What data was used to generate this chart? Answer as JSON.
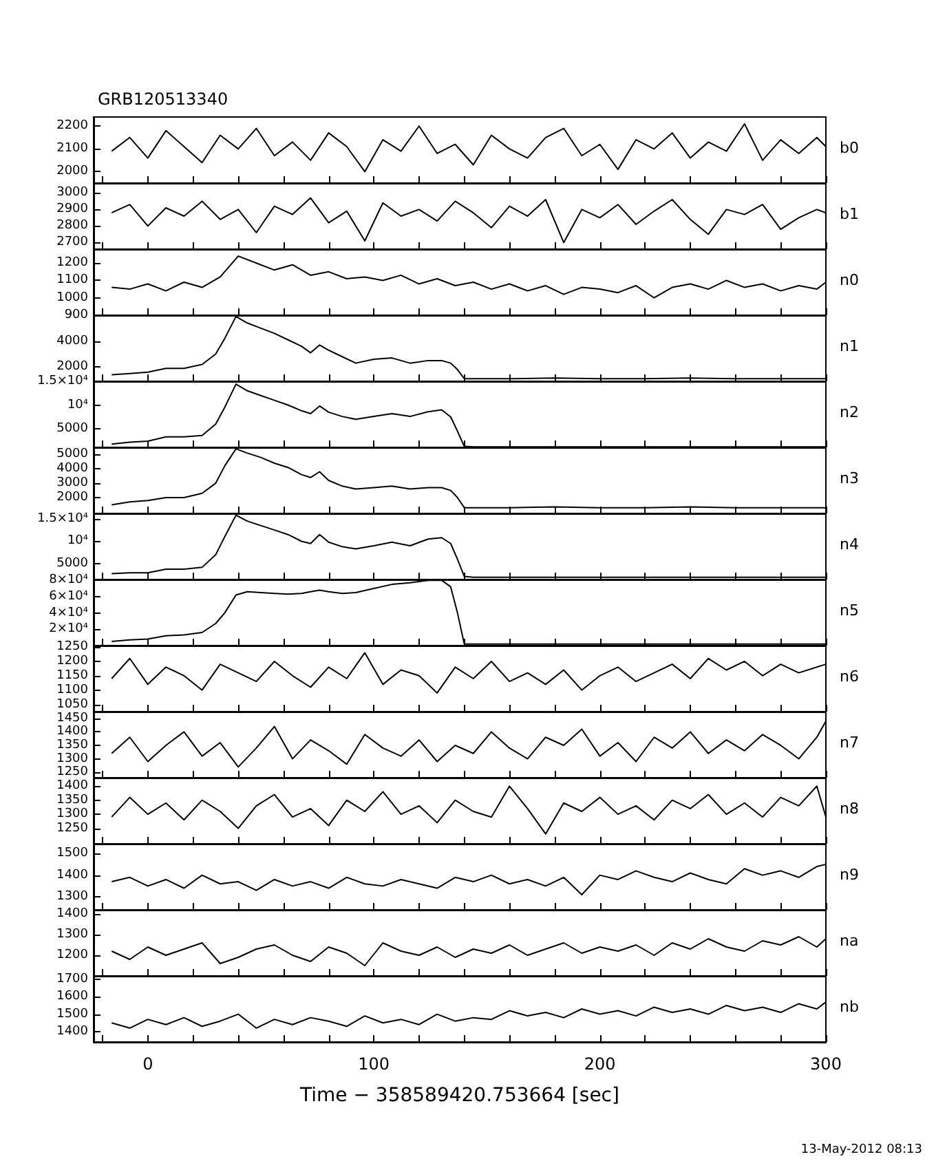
{
  "chart_data": [
    {
      "type": "line",
      "title": "GRB120513340",
      "tick_labels": "y",
      "marker": "none",
      "xlim": [
        -24,
        300
      ],
      "xticks": [
        {
          "value": -20,
          "label": null
        },
        0,
        {
          "value": 20,
          "label": null
        },
        {
          "value": 40,
          "label": null
        },
        {
          "value": 60,
          "label": null
        },
        {
          "value": 80,
          "label": null
        },
        100,
        {
          "value": 120,
          "label": null
        },
        {
          "value": 140,
          "label": null
        },
        {
          "value": 160,
          "label": null
        },
        {
          "value": 180,
          "label": null
        },
        200,
        {
          "value": 220,
          "label": null
        },
        {
          "value": 240,
          "label": null
        },
        {
          "value": 260,
          "label": null
        },
        {
          "value": 280,
          "label": null
        },
        300
      ],
      "ylim": [
        1950,
        2240
      ],
      "yticks": [
        2000,
        2100,
        2200
      ],
      "x": [
        -16,
        -8,
        0,
        8,
        16,
        24,
        32,
        40,
        48,
        56,
        64,
        72,
        80,
        88,
        96,
        104,
        112,
        120,
        128,
        136,
        144,
        152,
        160,
        168,
        176,
        184,
        192,
        200,
        208,
        216,
        224,
        232,
        240,
        248,
        256,
        264,
        272,
        280,
        288,
        296,
        300
      ],
      "series": [
        {
          "name": "b0",
          "color": "#000000",
          "values": [
            2090,
            2150,
            2060,
            2180,
            2110,
            2040,
            2160,
            2100,
            2190,
            2070,
            2130,
            2050,
            2170,
            2110,
            2000,
            2140,
            2090,
            2200,
            2080,
            2120,
            2030,
            2160,
            2100,
            2060,
            2150,
            2190,
            2070,
            2120,
            2010,
            2140,
            2100,
            2170,
            2060,
            2130,
            2090,
            2210,
            2050,
            2140,
            2080,
            2150,
            2110
          ]
        }
      ]
    },
    {
      "type": "line",
      "tick_labels": "y",
      "marker": "none",
      "xlim": [
        -24,
        300
      ],
      "xticks": [
        {
          "value": -20,
          "label": null
        },
        0,
        {
          "value": 20,
          "label": null
        },
        {
          "value": 40,
          "label": null
        },
        {
          "value": 60,
          "label": null
        },
        {
          "value": 80,
          "label": null
        },
        100,
        {
          "value": 120,
          "label": null
        },
        {
          "value": 140,
          "label": null
        },
        {
          "value": 160,
          "label": null
        },
        {
          "value": 180,
          "label": null
        },
        200,
        {
          "value": 220,
          "label": null
        },
        {
          "value": 240,
          "label": null
        },
        {
          "value": 260,
          "label": null
        },
        {
          "value": 280,
          "label": null
        },
        300
      ],
      "ylim": [
        2660,
        3060
      ],
      "yticks": [
        2700,
        2800,
        2900,
        3000
      ],
      "x": [
        -16,
        -8,
        0,
        8,
        16,
        24,
        32,
        40,
        48,
        56,
        64,
        72,
        80,
        88,
        96,
        104,
        112,
        120,
        128,
        136,
        144,
        152,
        160,
        168,
        176,
        184,
        192,
        200,
        208,
        216,
        224,
        232,
        240,
        248,
        256,
        264,
        272,
        280,
        288,
        296,
        300
      ],
      "series": [
        {
          "name": "b1",
          "color": "#000000",
          "values": [
            2880,
            2930,
            2800,
            2910,
            2860,
            2950,
            2840,
            2900,
            2760,
            2920,
            2870,
            2970,
            2820,
            2890,
            2710,
            2940,
            2860,
            2900,
            2830,
            2950,
            2880,
            2790,
            2920,
            2860,
            2960,
            2700,
            2900,
            2850,
            2930,
            2810,
            2890,
            2960,
            2840,
            2750,
            2900,
            2870,
            2930,
            2780,
            2850,
            2900,
            2880
          ]
        }
      ]
    },
    {
      "type": "line",
      "tick_labels": "y",
      "marker": "none",
      "xlim": [
        -24,
        300
      ],
      "xticks": [
        {
          "value": -20,
          "label": null
        },
        0,
        {
          "value": 20,
          "label": null
        },
        {
          "value": 40,
          "label": null
        },
        {
          "value": 60,
          "label": null
        },
        {
          "value": 80,
          "label": null
        },
        100,
        {
          "value": 120,
          "label": null
        },
        {
          "value": 140,
          "label": null
        },
        {
          "value": 160,
          "label": null
        },
        {
          "value": 180,
          "label": null
        },
        200,
        {
          "value": 220,
          "label": null
        },
        {
          "value": 240,
          "label": null
        },
        {
          "value": 260,
          "label": null
        },
        {
          "value": 280,
          "label": null
        },
        300
      ],
      "ylim": [
        900,
        1280
      ],
      "yticks": [
        900,
        1000,
        1100,
        1200
      ],
      "x": [
        -16,
        -8,
        0,
        8,
        16,
        24,
        32,
        40,
        48,
        56,
        64,
        72,
        80,
        88,
        96,
        104,
        112,
        120,
        128,
        136,
        144,
        152,
        160,
        168,
        176,
        184,
        192,
        200,
        208,
        216,
        224,
        232,
        240,
        248,
        256,
        264,
        272,
        280,
        288,
        296,
        300
      ],
      "series": [
        {
          "name": "n0",
          "color": "#000000",
          "values": [
            1060,
            1050,
            1080,
            1040,
            1090,
            1060,
            1120,
            1240,
            1200,
            1160,
            1190,
            1130,
            1150,
            1110,
            1120,
            1100,
            1130,
            1080,
            1110,
            1070,
            1090,
            1050,
            1080,
            1040,
            1070,
            1020,
            1060,
            1050,
            1030,
            1070,
            1000,
            1060,
            1080,
            1050,
            1100,
            1060,
            1080,
            1040,
            1070,
            1050,
            1090
          ]
        }
      ]
    },
    {
      "type": "line",
      "tick_labels": "y",
      "marker": "none",
      "xlim": [
        -24,
        300
      ],
      "xticks": [
        {
          "value": -20,
          "label": null
        },
        0,
        {
          "value": 20,
          "label": null
        },
        {
          "value": 40,
          "label": null
        },
        {
          "value": 60,
          "label": null
        },
        {
          "value": 80,
          "label": null
        },
        100,
        {
          "value": 120,
          "label": null
        },
        {
          "value": 140,
          "label": null
        },
        {
          "value": 160,
          "label": null
        },
        {
          "value": 180,
          "label": null
        },
        200,
        {
          "value": 220,
          "label": null
        },
        {
          "value": 240,
          "label": null
        },
        {
          "value": 260,
          "label": null
        },
        {
          "value": 280,
          "label": null
        },
        300
      ],
      "ylim": [
        900,
        6000
      ],
      "yticks": [
        2000,
        4000
      ],
      "x": [
        -16,
        -8,
        0,
        8,
        16,
        24,
        30,
        34,
        39,
        44,
        50,
        56,
        62,
        68,
        72,
        76,
        80,
        86,
        92,
        100,
        108,
        116,
        124,
        130,
        134,
        137,
        140,
        144,
        160,
        180,
        200,
        220,
        240,
        260,
        280,
        300
      ],
      "series": [
        {
          "name": "n1",
          "color": "#000000",
          "values": [
            1400,
            1500,
            1600,
            1900,
            1900,
            2200,
            3000,
            4200,
            5900,
            5400,
            5000,
            4600,
            4100,
            3600,
            3100,
            3700,
            3300,
            2800,
            2300,
            2600,
            2700,
            2300,
            2500,
            2500,
            2300,
            1800,
            1100,
            1100,
            1100,
            1150,
            1100,
            1100,
            1150,
            1100,
            1100,
            1100
          ]
        }
      ]
    },
    {
      "type": "line",
      "tick_labels": "y",
      "marker": "none",
      "xlim": [
        -24,
        300
      ],
      "xticks": [
        {
          "value": -20,
          "label": null
        },
        0,
        {
          "value": 20,
          "label": null
        },
        {
          "value": 40,
          "label": null
        },
        {
          "value": 60,
          "label": null
        },
        {
          "value": 80,
          "label": null
        },
        100,
        {
          "value": 120,
          "label": null
        },
        {
          "value": 140,
          "label": null
        },
        {
          "value": 160,
          "label": null
        },
        {
          "value": 180,
          "label": null
        },
        200,
        {
          "value": 220,
          "label": null
        },
        {
          "value": 240,
          "label": null
        },
        {
          "value": 260,
          "label": null
        },
        {
          "value": 280,
          "label": null
        },
        300
      ],
      "ylim": [
        1100,
        15000
      ],
      "yticks": [
        5000,
        {
          "value": 10000,
          "label": "10⁴"
        },
        {
          "value": 15000,
          "label": "1.5×10⁴"
        }
      ],
      "x": [
        -16,
        -8,
        0,
        8,
        16,
        24,
        30,
        34,
        39,
        44,
        50,
        56,
        62,
        68,
        72,
        76,
        80,
        86,
        92,
        100,
        108,
        116,
        124,
        130,
        134,
        137,
        140,
        144,
        160,
        180,
        200,
        220,
        240,
        260,
        280,
        300
      ],
      "series": [
        {
          "name": "n2",
          "color": "#000000",
          "values": [
            1800,
            2200,
            2400,
            3300,
            3300,
            3600,
            6000,
            9500,
            14400,
            13000,
            12000,
            11000,
            10000,
            8800,
            8200,
            9800,
            8500,
            7600,
            7000,
            7600,
            8200,
            7600,
            8600,
            9000,
            7500,
            4500,
            1300,
            1200,
            1200,
            1200,
            1200,
            1200,
            1200,
            1200,
            1200,
            1200
          ]
        }
      ]
    },
    {
      "type": "line",
      "tick_labels": "y",
      "marker": "none",
      "xlim": [
        -24,
        300
      ],
      "xticks": [
        {
          "value": -20,
          "label": null
        },
        0,
        {
          "value": 20,
          "label": null
        },
        {
          "value": 40,
          "label": null
        },
        {
          "value": 60,
          "label": null
        },
        {
          "value": 80,
          "label": null
        },
        100,
        {
          "value": 120,
          "label": null
        },
        {
          "value": 140,
          "label": null
        },
        {
          "value": 160,
          "label": null
        },
        {
          "value": 180,
          "label": null
        },
        200,
        {
          "value": 220,
          "label": null
        },
        {
          "value": 240,
          "label": null
        },
        {
          "value": 260,
          "label": null
        },
        {
          "value": 280,
          "label": null
        },
        300
      ],
      "ylim": [
        900,
        5500
      ],
      "yticks": [
        2000,
        3000,
        4000,
        5000
      ],
      "x": [
        -16,
        -8,
        0,
        8,
        16,
        24,
        30,
        34,
        39,
        44,
        50,
        56,
        62,
        68,
        72,
        76,
        80,
        86,
        92,
        100,
        108,
        116,
        124,
        130,
        134,
        137,
        140,
        144,
        160,
        180,
        200,
        220,
        240,
        260,
        280,
        300
      ],
      "series": [
        {
          "name": "n3",
          "color": "#000000",
          "values": [
            1500,
            1700,
            1800,
            2000,
            2000,
            2300,
            3000,
            4200,
            5400,
            5100,
            4800,
            4400,
            4100,
            3600,
            3400,
            3800,
            3200,
            2800,
            2600,
            2700,
            2800,
            2600,
            2700,
            2700,
            2500,
            2000,
            1300,
            1300,
            1300,
            1350,
            1300,
            1300,
            1350,
            1300,
            1300,
            1300
          ]
        }
      ]
    },
    {
      "type": "line",
      "tick_labels": "y",
      "marker": "none",
      "xlim": [
        -24,
        300
      ],
      "xticks": [
        {
          "value": -20,
          "label": null
        },
        0,
        {
          "value": 20,
          "label": null
        },
        {
          "value": 40,
          "label": null
        },
        {
          "value": 60,
          "label": null
        },
        {
          "value": 80,
          "label": null
        },
        100,
        {
          "value": 120,
          "label": null
        },
        {
          "value": 140,
          "label": null
        },
        {
          "value": 160,
          "label": null
        },
        {
          "value": 180,
          "label": null
        },
        200,
        {
          "value": 220,
          "label": null
        },
        {
          "value": 240,
          "label": null
        },
        {
          "value": 260,
          "label": null
        },
        {
          "value": 280,
          "label": null
        },
        300
      ],
      "ylim": [
        1500,
        16200
      ],
      "yticks": [
        5000,
        {
          "value": 10000,
          "label": "10⁴"
        },
        {
          "value": 15000,
          "label": "1.5×10⁴"
        }
      ],
      "x": [
        -16,
        -8,
        0,
        8,
        16,
        24,
        30,
        34,
        39,
        44,
        50,
        56,
        62,
        68,
        72,
        76,
        80,
        86,
        92,
        100,
        108,
        116,
        124,
        130,
        134,
        137,
        140,
        144,
        160,
        180,
        200,
        220,
        240,
        260,
        280,
        300
      ],
      "series": [
        {
          "name": "n4",
          "color": "#000000",
          "values": [
            2800,
            3000,
            3000,
            3800,
            3800,
            4200,
            7000,
            11000,
            15800,
            14500,
            13500,
            12500,
            11500,
            10000,
            9500,
            11500,
            9800,
            8800,
            8300,
            9000,
            9800,
            9000,
            10500,
            10800,
            9500,
            6000,
            2200,
            2000,
            2000,
            2000,
            2000,
            2000,
            2000,
            2000,
            2000,
            2000
          ]
        }
      ]
    },
    {
      "type": "line",
      "tick_labels": "y",
      "marker": "none",
      "xlim": [
        -24,
        300
      ],
      "xticks": [
        {
          "value": -20,
          "label": null
        },
        0,
        {
          "value": 20,
          "label": null
        },
        {
          "value": 40,
          "label": null
        },
        {
          "value": 60,
          "label": null
        },
        {
          "value": 80,
          "label": null
        },
        100,
        {
          "value": 120,
          "label": null
        },
        {
          "value": 140,
          "label": null
        },
        {
          "value": 160,
          "label": null
        },
        {
          "value": 180,
          "label": null
        },
        200,
        {
          "value": 220,
          "label": null
        },
        {
          "value": 240,
          "label": null
        },
        {
          "value": 260,
          "label": null
        },
        {
          "value": 280,
          "label": null
        },
        300
      ],
      "ylim": [
        0,
        81000
      ],
      "yticks": [
        {
          "value": 20000,
          "label": "2×10⁴"
        },
        {
          "value": 40000,
          "label": "4×10⁴"
        },
        {
          "value": 60000,
          "label": "6×10⁴"
        },
        {
          "value": 80000,
          "label": "8×10⁴"
        }
      ],
      "x": [
        -16,
        -8,
        0,
        8,
        16,
        24,
        30,
        34,
        39,
        44,
        50,
        56,
        62,
        68,
        72,
        76,
        80,
        86,
        92,
        100,
        108,
        116,
        124,
        130,
        134,
        137,
        140,
        144,
        160,
        180,
        200,
        220,
        240,
        260,
        280,
        300
      ],
      "series": [
        {
          "name": "n5",
          "color": "#000000",
          "values": [
            5000,
            7000,
            8000,
            12000,
            13000,
            16000,
            27000,
            40000,
            62000,
            66000,
            65000,
            64000,
            63000,
            64000,
            66000,
            68000,
            66000,
            64000,
            65000,
            70000,
            75000,
            77000,
            80000,
            80000,
            72000,
            40000,
            2000,
            2000,
            2000,
            2000,
            2000,
            2000,
            2000,
            2000,
            2000,
            2000
          ]
        }
      ]
    },
    {
      "type": "line",
      "tick_labels": "y",
      "marker": "none",
      "xlim": [
        -24,
        300
      ],
      "xticks": [
        {
          "value": -20,
          "label": null
        },
        0,
        {
          "value": 20,
          "label": null
        },
        {
          "value": 40,
          "label": null
        },
        {
          "value": 60,
          "label": null
        },
        {
          "value": 80,
          "label": null
        },
        100,
        {
          "value": 120,
          "label": null
        },
        {
          "value": 140,
          "label": null
        },
        {
          "value": 160,
          "label": null
        },
        {
          "value": 180,
          "label": null
        },
        200,
        {
          "value": 220,
          "label": null
        },
        {
          "value": 240,
          "label": null
        },
        {
          "value": 260,
          "label": null
        },
        {
          "value": 280,
          "label": null
        },
        300
      ],
      "ylim": [
        1025,
        1255
      ],
      "yticks": [
        1050,
        1100,
        1150,
        1200,
        1250
      ],
      "x": [
        -16,
        -8,
        0,
        8,
        16,
        24,
        32,
        40,
        48,
        56,
        64,
        72,
        80,
        88,
        96,
        104,
        112,
        120,
        128,
        136,
        144,
        152,
        160,
        168,
        176,
        184,
        192,
        200,
        208,
        216,
        224,
        232,
        240,
        248,
        256,
        264,
        272,
        280,
        288,
        296,
        300
      ],
      "series": [
        {
          "name": "n6",
          "color": "#000000",
          "values": [
            1140,
            1210,
            1120,
            1180,
            1150,
            1100,
            1190,
            1160,
            1130,
            1200,
            1150,
            1110,
            1180,
            1140,
            1230,
            1120,
            1170,
            1150,
            1090,
            1180,
            1140,
            1200,
            1130,
            1160,
            1120,
            1170,
            1100,
            1150,
            1180,
            1130,
            1160,
            1190,
            1140,
            1210,
            1170,
            1200,
            1150,
            1190,
            1160,
            1180,
            1190
          ]
        }
      ]
    },
    {
      "type": "line",
      "tick_labels": "y",
      "marker": "none",
      "xlim": [
        -24,
        300
      ],
      "xticks": [
        {
          "value": -20,
          "label": null
        },
        0,
        {
          "value": 20,
          "label": null
        },
        {
          "value": 40,
          "label": null
        },
        {
          "value": 60,
          "label": null
        },
        {
          "value": 80,
          "label": null
        },
        100,
        {
          "value": 120,
          "label": null
        },
        {
          "value": 140,
          "label": null
        },
        {
          "value": 160,
          "label": null
        },
        {
          "value": 180,
          "label": null
        },
        200,
        {
          "value": 220,
          "label": null
        },
        {
          "value": 240,
          "label": null
        },
        {
          "value": 260,
          "label": null
        },
        {
          "value": 280,
          "label": null
        },
        300
      ],
      "ylim": [
        1230,
        1475
      ],
      "yticks": [
        1250,
        1300,
        1350,
        1400,
        1450
      ],
      "x": [
        -16,
        -8,
        0,
        8,
        16,
        24,
        32,
        40,
        48,
        56,
        64,
        72,
        80,
        88,
        96,
        104,
        112,
        120,
        128,
        136,
        144,
        152,
        160,
        168,
        176,
        184,
        192,
        200,
        208,
        216,
        224,
        232,
        240,
        248,
        256,
        264,
        272,
        280,
        288,
        296,
        300
      ],
      "series": [
        {
          "name": "n7",
          "color": "#000000",
          "values": [
            1320,
            1380,
            1290,
            1350,
            1400,
            1310,
            1360,
            1270,
            1340,
            1420,
            1300,
            1370,
            1330,
            1280,
            1390,
            1340,
            1310,
            1370,
            1290,
            1350,
            1320,
            1400,
            1340,
            1300,
            1380,
            1350,
            1410,
            1310,
            1360,
            1290,
            1380,
            1340,
            1400,
            1320,
            1370,
            1330,
            1390,
            1350,
            1300,
            1380,
            1440
          ]
        }
      ]
    },
    {
      "type": "line",
      "tick_labels": "y",
      "marker": "none",
      "xlim": [
        -24,
        300
      ],
      "xticks": [
        {
          "value": -20,
          "label": null
        },
        0,
        {
          "value": 20,
          "label": null
        },
        {
          "value": 40,
          "label": null
        },
        {
          "value": 60,
          "label": null
        },
        {
          "value": 80,
          "label": null
        },
        100,
        {
          "value": 120,
          "label": null
        },
        {
          "value": 140,
          "label": null
        },
        {
          "value": 160,
          "label": null
        },
        {
          "value": 180,
          "label": null
        },
        200,
        {
          "value": 220,
          "label": null
        },
        {
          "value": 240,
          "label": null
        },
        {
          "value": 260,
          "label": null
        },
        {
          "value": 280,
          "label": null
        },
        300
      ],
      "ylim": [
        1195,
        1430
      ],
      "yticks": [
        1250,
        1300,
        1350,
        1400
      ],
      "x": [
        -16,
        -8,
        0,
        8,
        16,
        24,
        32,
        40,
        48,
        56,
        64,
        72,
        80,
        88,
        96,
        104,
        112,
        120,
        128,
        136,
        144,
        152,
        160,
        168,
        176,
        184,
        192,
        200,
        208,
        216,
        224,
        232,
        240,
        248,
        256,
        264,
        272,
        280,
        288,
        296,
        300
      ],
      "series": [
        {
          "name": "n8",
          "color": "#000000",
          "values": [
            1290,
            1360,
            1300,
            1340,
            1280,
            1350,
            1310,
            1250,
            1330,
            1370,
            1290,
            1320,
            1260,
            1350,
            1310,
            1380,
            1300,
            1330,
            1270,
            1350,
            1310,
            1290,
            1400,
            1320,
            1230,
            1340,
            1310,
            1360,
            1300,
            1330,
            1280,
            1350,
            1320,
            1370,
            1300,
            1340,
            1290,
            1360,
            1330,
            1400,
            1290
          ]
        }
      ]
    },
    {
      "type": "line",
      "tick_labels": "y",
      "marker": "none",
      "xlim": [
        -24,
        300
      ],
      "xticks": [
        {
          "value": -20,
          "label": null
        },
        0,
        {
          "value": 20,
          "label": null
        },
        {
          "value": 40,
          "label": null
        },
        {
          "value": 60,
          "label": null
        },
        {
          "value": 80,
          "label": null
        },
        100,
        {
          "value": 120,
          "label": null
        },
        {
          "value": 140,
          "label": null
        },
        {
          "value": 160,
          "label": null
        },
        {
          "value": 180,
          "label": null
        },
        200,
        {
          "value": 220,
          "label": null
        },
        {
          "value": 240,
          "label": null
        },
        {
          "value": 260,
          "label": null
        },
        {
          "value": 280,
          "label": null
        },
        300
      ],
      "ylim": [
        1240,
        1545
      ],
      "yticks": [
        1300,
        1400,
        1500
      ],
      "x": [
        -16,
        -8,
        0,
        8,
        16,
        24,
        32,
        40,
        48,
        56,
        64,
        72,
        80,
        88,
        96,
        104,
        112,
        120,
        128,
        136,
        144,
        152,
        160,
        168,
        176,
        184,
        192,
        200,
        208,
        216,
        224,
        232,
        240,
        248,
        256,
        264,
        272,
        280,
        288,
        296,
        300
      ],
      "series": [
        {
          "name": "n9",
          "color": "#000000",
          "values": [
            1370,
            1390,
            1350,
            1380,
            1340,
            1400,
            1360,
            1370,
            1330,
            1380,
            1350,
            1370,
            1340,
            1390,
            1360,
            1350,
            1380,
            1360,
            1340,
            1390,
            1370,
            1400,
            1360,
            1380,
            1350,
            1390,
            1310,
            1400,
            1380,
            1420,
            1390,
            1370,
            1410,
            1380,
            1360,
            1430,
            1400,
            1420,
            1390,
            1440,
            1450
          ]
        }
      ]
    },
    {
      "type": "line",
      "tick_labels": "y",
      "marker": "none",
      "xlim": [
        -24,
        300
      ],
      "xticks": [
        {
          "value": -20,
          "label": null
        },
        0,
        {
          "value": 20,
          "label": null
        },
        {
          "value": 40,
          "label": null
        },
        {
          "value": 60,
          "label": null
        },
        {
          "value": 80,
          "label": null
        },
        100,
        {
          "value": 120,
          "label": null
        },
        {
          "value": 140,
          "label": null
        },
        {
          "value": 160,
          "label": null
        },
        {
          "value": 180,
          "label": null
        },
        200,
        {
          "value": 220,
          "label": null
        },
        {
          "value": 240,
          "label": null
        },
        {
          "value": 260,
          "label": null
        },
        {
          "value": 280,
          "label": null
        },
        300
      ],
      "ylim": [
        1100,
        1420
      ],
      "yticks": [
        1200,
        1300,
        1400
      ],
      "x": [
        -16,
        -8,
        0,
        8,
        16,
        24,
        32,
        40,
        48,
        56,
        64,
        72,
        80,
        88,
        96,
        104,
        112,
        120,
        128,
        136,
        144,
        152,
        160,
        168,
        176,
        184,
        192,
        200,
        208,
        216,
        224,
        232,
        240,
        248,
        256,
        264,
        272,
        280,
        288,
        296,
        300
      ],
      "series": [
        {
          "name": "na",
          "color": "#000000",
          "values": [
            1220,
            1180,
            1240,
            1200,
            1230,
            1260,
            1160,
            1190,
            1230,
            1250,
            1200,
            1170,
            1240,
            1210,
            1150,
            1260,
            1220,
            1200,
            1240,
            1190,
            1230,
            1210,
            1250,
            1200,
            1230,
            1260,
            1210,
            1240,
            1220,
            1250,
            1200,
            1260,
            1230,
            1280,
            1240,
            1220,
            1270,
            1250,
            1290,
            1240,
            1280
          ]
        }
      ]
    },
    {
      "type": "line",
      "marker": "none",
      "xlim": [
        -24,
        300
      ],
      "xticks": [
        {
          "value": -20,
          "label": null
        },
        0,
        {
          "value": 20,
          "label": null
        },
        {
          "value": 40,
          "label": null
        },
        {
          "value": 60,
          "label": null
        },
        {
          "value": 80,
          "label": null
        },
        100,
        {
          "value": 120,
          "label": null
        },
        {
          "value": 140,
          "label": null
        },
        {
          "value": 160,
          "label": null
        },
        {
          "value": 180,
          "label": null
        },
        200,
        {
          "value": 220,
          "label": null
        },
        {
          "value": 240,
          "label": null
        },
        {
          "value": 260,
          "label": null
        },
        {
          "value": 280,
          "label": null
        },
        300
      ],
      "ylim": [
        1340,
        1720
      ],
      "yticks": [
        1400,
        1500,
        1600,
        1700
      ],
      "xlabel": "Time − 358589420.753664 [sec]",
      "annotations": [
        "13-May-2012 08:13"
      ],
      "x": [
        -16,
        -8,
        0,
        8,
        16,
        24,
        32,
        40,
        48,
        56,
        64,
        72,
        80,
        88,
        96,
        104,
        112,
        120,
        128,
        136,
        144,
        152,
        160,
        168,
        176,
        184,
        192,
        200,
        208,
        216,
        224,
        232,
        240,
        248,
        256,
        264,
        272,
        280,
        288,
        296,
        300
      ],
      "series": [
        {
          "name": "nb",
          "color": "#000000",
          "values": [
            1450,
            1420,
            1470,
            1440,
            1480,
            1430,
            1460,
            1500,
            1420,
            1470,
            1440,
            1480,
            1460,
            1430,
            1490,
            1450,
            1470,
            1440,
            1500,
            1460,
            1480,
            1470,
            1520,
            1490,
            1510,
            1480,
            1530,
            1500,
            1520,
            1490,
            1540,
            1510,
            1530,
            1500,
            1550,
            1520,
            1540,
            1510,
            1560,
            1530,
            1570
          ]
        }
      ]
    }
  ]
}
